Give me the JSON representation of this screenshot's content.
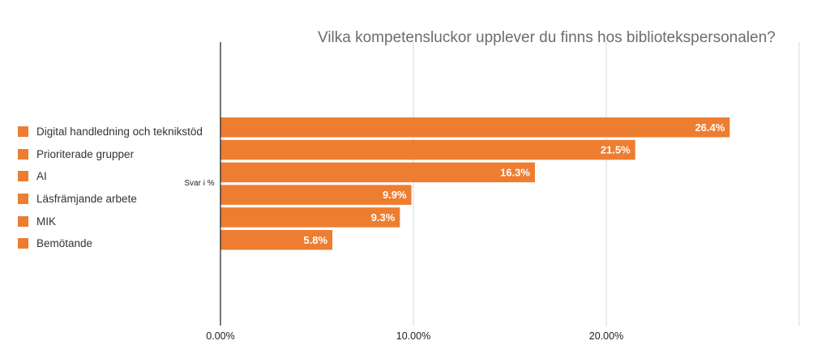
{
  "chart_data": {
    "type": "bar",
    "orientation": "horizontal",
    "title": "Vilka kompetensluckor upplever du finns hos bibliotekspersonalen?",
    "ylabel": "Svar i %",
    "xlabel": "",
    "categories": [
      "Digital handledning och teknikstöd",
      "Prioriterade grupper",
      "AI",
      "Läsfrämjande arbete",
      "MIK",
      "Bemötande"
    ],
    "values": [
      26.4,
      21.5,
      16.3,
      9.9,
      9.3,
      5.8
    ],
    "value_labels": [
      "26.4%",
      "21.5%",
      "16.3%",
      "9.9%",
      "9.3%",
      "5.8%"
    ],
    "xlim": [
      0,
      30
    ],
    "x_ticks": [
      0,
      10,
      20
    ],
    "x_tick_labels": [
      "0.00%",
      "10.00%",
      "20.00%"
    ],
    "grid": true,
    "legend_position": "left",
    "bar_color": "#ED7D31"
  }
}
